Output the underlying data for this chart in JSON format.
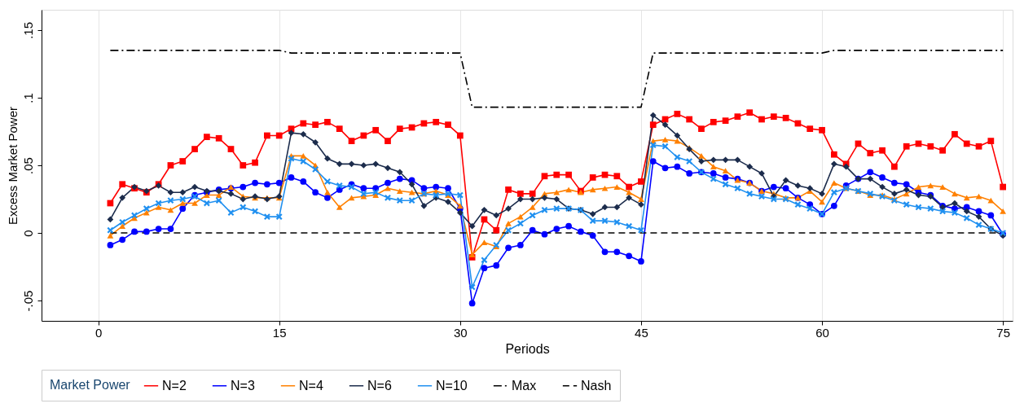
{
  "chart_data": {
    "type": "line",
    "xlabel": "Periods",
    "ylabel": "Excess Market Power",
    "legend_title": "Market Power",
    "legend": "bottom",
    "grid": "x",
    "x": [
      1,
      2,
      3,
      4,
      5,
      6,
      7,
      8,
      9,
      10,
      11,
      12,
      13,
      14,
      15,
      16,
      17,
      18,
      19,
      20,
      21,
      22,
      23,
      24,
      25,
      26,
      27,
      28,
      29,
      30,
      31,
      32,
      33,
      34,
      35,
      36,
      37,
      38,
      39,
      40,
      41,
      42,
      43,
      44,
      45,
      46,
      47,
      48,
      49,
      50,
      51,
      52,
      53,
      54,
      55,
      56,
      57,
      58,
      59,
      60,
      61,
      62,
      63,
      64,
      65,
      66,
      67,
      68,
      69,
      70,
      71,
      72,
      73,
      74,
      75
    ],
    "xlim": [
      -4.7,
      75.8
    ],
    "xticks": [
      0,
      15,
      30,
      45,
      60,
      75
    ],
    "ylim": [
      -0.065,
      0.165
    ],
    "yticks": [
      {
        "value": -0.05,
        "label": "-.05"
      },
      {
        "value": 0,
        "label": "0"
      },
      {
        "value": 0.05,
        "label": ".05"
      },
      {
        "value": 0.1,
        "label": ".1"
      },
      {
        "value": 0.15,
        "label": ".15"
      }
    ],
    "series": [
      {
        "name": "N=2",
        "color": "#ff0000",
        "marker": "square",
        "line_style": "solid",
        "values": [
          0.022,
          0.036,
          0.033,
          0.03,
          0.036,
          0.05,
          0.053,
          0.062,
          0.071,
          0.07,
          0.062,
          0.05,
          0.052,
          0.072,
          0.072,
          0.077,
          0.081,
          0.08,
          0.082,
          0.077,
          0.068,
          0.072,
          0.076,
          0.068,
          0.077,
          0.078,
          0.081,
          0.082,
          0.08,
          0.072,
          -0.018,
          0.01,
          0.002,
          0.032,
          0.029,
          0.029,
          0.042,
          0.043,
          0.043,
          0.031,
          0.041,
          0.043,
          0.042,
          0.034,
          0.038,
          0.08,
          0.084,
          0.088,
          0.084,
          0.077,
          0.082,
          0.083,
          0.086,
          0.089,
          0.084,
          0.086,
          0.085,
          0.081,
          0.077,
          0.076,
          0.058,
          0.051,
          0.066,
          0.059,
          0.061,
          0.049,
          0.064,
          0.066,
          0.064,
          0.061,
          0.073,
          0.066,
          0.064,
          0.068,
          0.034
        ]
      },
      {
        "name": "N=3",
        "color": "#0000ff",
        "marker": "circle",
        "line_style": "solid",
        "values": [
          -0.009,
          -0.005,
          0.001,
          0.001,
          0.003,
          0.003,
          0.018,
          0.028,
          0.03,
          0.032,
          0.033,
          0.034,
          0.037,
          0.036,
          0.037,
          0.041,
          0.038,
          0.03,
          0.026,
          0.032,
          0.036,
          0.033,
          0.033,
          0.037,
          0.04,
          0.039,
          0.033,
          0.034,
          0.033,
          0.018,
          -0.052,
          -0.026,
          -0.024,
          -0.011,
          -0.009,
          0.002,
          -0.001,
          0.003,
          0.005,
          0.001,
          -0.002,
          -0.014,
          -0.014,
          -0.017,
          -0.021,
          0.053,
          0.048,
          0.049,
          0.044,
          0.045,
          0.044,
          0.041,
          0.04,
          0.037,
          0.031,
          0.034,
          0.033,
          0.026,
          0.021,
          0.014,
          0.02,
          0.035,
          0.04,
          0.045,
          0.041,
          0.037,
          0.036,
          0.03,
          0.028,
          0.02,
          0.018,
          0.019,
          0.016,
          0.013,
          -0.001
        ]
      },
      {
        "name": "N=4",
        "color": "#ff8000",
        "marker": "triangle",
        "line_style": "solid",
        "values": [
          -0.002,
          0.005,
          0.011,
          0.015,
          0.019,
          0.017,
          0.022,
          0.022,
          0.028,
          0.028,
          0.034,
          0.027,
          0.026,
          0.026,
          0.026,
          0.057,
          0.057,
          0.05,
          0.03,
          0.019,
          0.026,
          0.027,
          0.028,
          0.033,
          0.031,
          0.03,
          0.029,
          0.031,
          0.028,
          0.02,
          -0.016,
          -0.007,
          -0.01,
          0.007,
          0.012,
          0.019,
          0.029,
          0.03,
          0.032,
          0.03,
          0.032,
          0.033,
          0.034,
          0.03,
          0.025,
          0.068,
          0.069,
          0.068,
          0.063,
          0.057,
          0.049,
          0.046,
          0.039,
          0.037,
          0.031,
          0.029,
          0.026,
          0.026,
          0.031,
          0.023,
          0.037,
          0.033,
          0.031,
          0.028,
          0.028,
          0.025,
          0.029,
          0.034,
          0.035,
          0.034,
          0.029,
          0.026,
          0.027,
          0.024,
          0.016
        ]
      },
      {
        "name": "N=6",
        "color": "#1c2c4c",
        "marker": "diamond",
        "line_style": "solid",
        "values": [
          0.01,
          0.026,
          0.034,
          0.031,
          0.035,
          0.03,
          0.03,
          0.034,
          0.031,
          0.031,
          0.029,
          0.025,
          0.027,
          0.025,
          0.027,
          0.074,
          0.073,
          0.067,
          0.055,
          0.051,
          0.051,
          0.05,
          0.051,
          0.048,
          0.045,
          0.036,
          0.02,
          0.026,
          0.023,
          0.015,
          0.005,
          0.017,
          0.013,
          0.018,
          0.025,
          0.025,
          0.026,
          0.025,
          0.018,
          0.017,
          0.014,
          0.019,
          0.019,
          0.026,
          0.021,
          0.087,
          0.08,
          0.072,
          0.062,
          0.053,
          0.054,
          0.054,
          0.054,
          0.049,
          0.044,
          0.027,
          0.039,
          0.035,
          0.033,
          0.029,
          0.051,
          0.049,
          0.04,
          0.04,
          0.034,
          0.029,
          0.032,
          0.028,
          0.027,
          0.019,
          0.022,
          0.016,
          0.012,
          0.003,
          -0.002
        ]
      },
      {
        "name": "N=10",
        "color": "#2090f0",
        "marker": "cross",
        "line_style": "solid",
        "values": [
          0.002,
          0.008,
          0.013,
          0.018,
          0.022,
          0.024,
          0.025,
          0.027,
          0.022,
          0.024,
          0.015,
          0.019,
          0.016,
          0.012,
          0.012,
          0.055,
          0.053,
          0.047,
          0.038,
          0.035,
          0.034,
          0.029,
          0.03,
          0.026,
          0.024,
          0.024,
          0.029,
          0.028,
          0.029,
          0.028,
          -0.04,
          -0.02,
          -0.009,
          0.002,
          0.007,
          0.013,
          0.017,
          0.018,
          0.018,
          0.017,
          0.009,
          0.009,
          0.008,
          0.005,
          0.002,
          0.065,
          0.064,
          0.056,
          0.053,
          0.045,
          0.04,
          0.036,
          0.033,
          0.029,
          0.027,
          0.025,
          0.025,
          0.021,
          0.018,
          0.014,
          0.03,
          0.033,
          0.031,
          0.029,
          0.027,
          0.024,
          0.021,
          0.019,
          0.018,
          0.016,
          0.015,
          0.011,
          0.006,
          0.003,
          0.0
        ]
      },
      {
        "name": "Max",
        "color": "#000000",
        "marker": "none",
        "line_style": "dashdot",
        "values": [
          0.135,
          0.135,
          0.135,
          0.135,
          0.135,
          0.135,
          0.135,
          0.135,
          0.135,
          0.135,
          0.135,
          0.135,
          0.135,
          0.135,
          0.135,
          0.133,
          0.133,
          0.133,
          0.133,
          0.133,
          0.133,
          0.133,
          0.133,
          0.133,
          0.133,
          0.133,
          0.133,
          0.133,
          0.133,
          0.133,
          0.093,
          0.093,
          0.093,
          0.093,
          0.093,
          0.093,
          0.093,
          0.093,
          0.093,
          0.093,
          0.093,
          0.093,
          0.093,
          0.093,
          0.093,
          0.133,
          0.133,
          0.133,
          0.133,
          0.133,
          0.133,
          0.133,
          0.133,
          0.133,
          0.133,
          0.133,
          0.133,
          0.133,
          0.133,
          0.133,
          0.135,
          0.135,
          0.135,
          0.135,
          0.135,
          0.135,
          0.135,
          0.135,
          0.135,
          0.135,
          0.135,
          0.135,
          0.135,
          0.135,
          0.135
        ]
      },
      {
        "name": "Nash",
        "color": "#000000",
        "marker": "none",
        "line_style": "dashed",
        "values": [
          0,
          0,
          0,
          0,
          0,
          0,
          0,
          0,
          0,
          0,
          0,
          0,
          0,
          0,
          0,
          0,
          0,
          0,
          0,
          0,
          0,
          0,
          0,
          0,
          0,
          0,
          0,
          0,
          0,
          0,
          0,
          0,
          0,
          0,
          0,
          0,
          0,
          0,
          0,
          0,
          0,
          0,
          0,
          0,
          0,
          0,
          0,
          0,
          0,
          0,
          0,
          0,
          0,
          0,
          0,
          0,
          0,
          0,
          0,
          0,
          0,
          0,
          0,
          0,
          0,
          0,
          0,
          0,
          0,
          0,
          0,
          0,
          0,
          0,
          0
        ]
      }
    ]
  }
}
